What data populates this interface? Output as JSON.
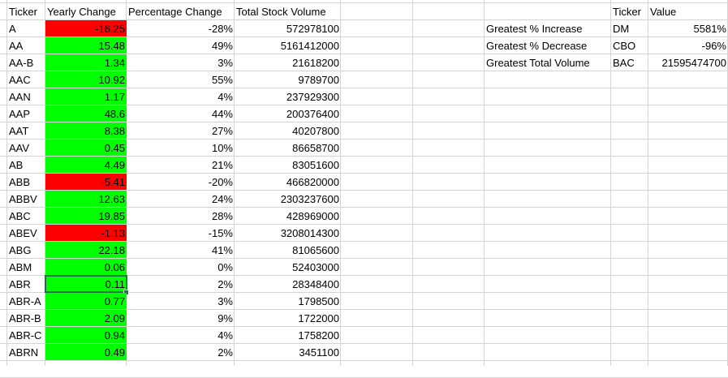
{
  "headers": {
    "ticker": "Ticker",
    "yearly_change": "Yearly Change",
    "percentage_change": "Percentage Change",
    "total_volume": "Total Stock Volume",
    "summary_ticker": "Ticker",
    "summary_value": "Value"
  },
  "rows": [
    {
      "ticker": "A",
      "change": "-16.25",
      "pct": "-28%",
      "volume": "572978100",
      "negative": true
    },
    {
      "ticker": "AA",
      "change": "15.48",
      "pct": "49%",
      "volume": "5161412000",
      "negative": false
    },
    {
      "ticker": "AA-B",
      "change": "1.34",
      "pct": "3%",
      "volume": "21618200",
      "negative": false
    },
    {
      "ticker": "AAC",
      "change": "10.92",
      "pct": "55%",
      "volume": "9789700",
      "negative": false
    },
    {
      "ticker": "AAN",
      "change": "1.17",
      "pct": "4%",
      "volume": "237929300",
      "negative": false
    },
    {
      "ticker": "AAP",
      "change": "48.6",
      "pct": "44%",
      "volume": "200376400",
      "negative": false
    },
    {
      "ticker": "AAT",
      "change": "8.38",
      "pct": "27%",
      "volume": "40207800",
      "negative": false
    },
    {
      "ticker": "AAV",
      "change": "0.45",
      "pct": "10%",
      "volume": "86658700",
      "negative": false
    },
    {
      "ticker": "AB",
      "change": "4.49",
      "pct": "21%",
      "volume": "83051600",
      "negative": false
    },
    {
      "ticker": "ABB",
      "change": "-5.41",
      "pct": "-20%",
      "volume": "466820000",
      "negative": true
    },
    {
      "ticker": "ABBV",
      "change": "12.63",
      "pct": "24%",
      "volume": "2303237600",
      "negative": false
    },
    {
      "ticker": "ABC",
      "change": "19.85",
      "pct": "28%",
      "volume": "428969000",
      "negative": false
    },
    {
      "ticker": "ABEV",
      "change": "-1.13",
      "pct": "-15%",
      "volume": "3208014300",
      "negative": true
    },
    {
      "ticker": "ABG",
      "change": "22.18",
      "pct": "41%",
      "volume": "81065600",
      "negative": false
    },
    {
      "ticker": "ABM",
      "change": "0.06",
      "pct": "0%",
      "volume": "52403000",
      "negative": false
    },
    {
      "ticker": "ABR",
      "change": "0.11",
      "pct": "2%",
      "volume": "28348400",
      "negative": false
    },
    {
      "ticker": "ABR-A",
      "change": "0.77",
      "pct": "3%",
      "volume": "1798500",
      "negative": false
    },
    {
      "ticker": "ABR-B",
      "change": "2.09",
      "pct": "9%",
      "volume": "1722000",
      "negative": false
    },
    {
      "ticker": "ABR-C",
      "change": "0.94",
      "pct": "4%",
      "volume": "1758200",
      "negative": false
    },
    {
      "ticker": "ABRN",
      "change": "0.49",
      "pct": "2%",
      "volume": "3451100",
      "negative": false
    }
  ],
  "summary": [
    {
      "label": "Greatest % Increase",
      "ticker": "DM",
      "value": "5581%"
    },
    {
      "label": "Greatest % Decrease",
      "ticker": "CBO",
      "value": "-96%"
    },
    {
      "label": "Greatest Total Volume",
      "ticker": "BAC",
      "value": "21595474700"
    }
  ],
  "selected_cell": {
    "ticker": "ABR",
    "value": "0.11"
  },
  "colors": {
    "positive_fill": "#00ff00",
    "negative_fill": "#ff0000",
    "grid": "#d4d4d4",
    "selection": "#1e7145"
  }
}
